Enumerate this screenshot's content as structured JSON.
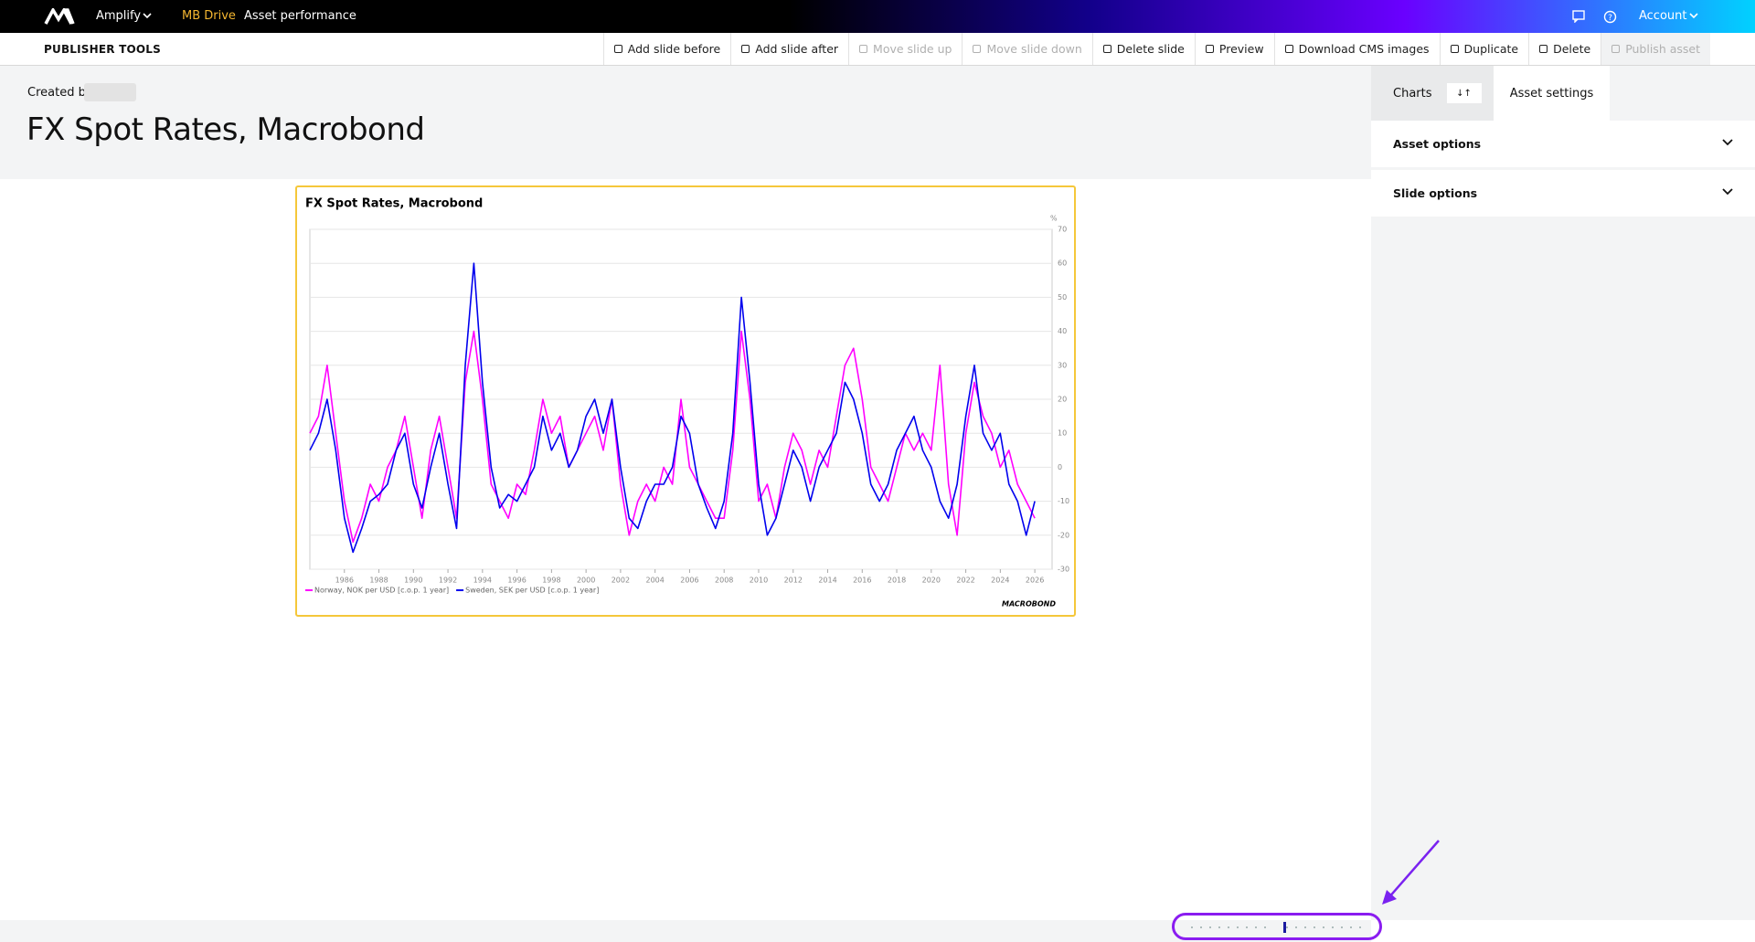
{
  "nav": {
    "brand": "Amplify",
    "links": [
      "MB Drive",
      "Asset performance"
    ],
    "account": "Account"
  },
  "toolbar": {
    "title": "PUBLISHER TOOLS",
    "buttons": [
      "Add slide before",
      "Add slide after",
      "Move slide up",
      "Move slide down",
      "Delete slide",
      "Preview",
      "Download CMS images",
      "Duplicate",
      "Delete",
      "Publish asset"
    ]
  },
  "header": {
    "created_by": "Created by",
    "title": "FX Spot Rates, Macrobond"
  },
  "sidebar": {
    "tabs": [
      "Charts",
      "Asset settings"
    ],
    "sections": [
      "Asset options",
      "Slide options"
    ]
  },
  "chart_data": {
    "type": "line",
    "title": "FX Spot Rates, Macrobond",
    "y_unit": "%",
    "source": "MACROBOND",
    "x": [
      1984,
      1984.5,
      1985,
      1985.5,
      1986,
      1986.5,
      1987,
      1987.5,
      1988,
      1988.5,
      1989,
      1989.5,
      1990,
      1990.5,
      1991,
      1991.5,
      1992,
      1992.5,
      1993,
      1993.5,
      1994,
      1994.5,
      1995,
      1995.5,
      1996,
      1996.5,
      1997,
      1997.5,
      1998,
      1998.5,
      1999,
      1999.5,
      2000,
      2000.5,
      2001,
      2001.5,
      2002,
      2002.5,
      2003,
      2003.5,
      2004,
      2004.5,
      2005,
      2005.5,
      2006,
      2006.5,
      2007,
      2007.5,
      2008,
      2008.5,
      2009,
      2009.5,
      2010,
      2010.5,
      2011,
      2011.5,
      2012,
      2012.5,
      2013,
      2013.5,
      2014,
      2014.5,
      2015,
      2015.5,
      2016,
      2016.5,
      2017,
      2017.5,
      2018,
      2018.5,
      2019,
      2019.5,
      2020,
      2020.5,
      2021,
      2021.5,
      2022,
      2022.5,
      2023,
      2023.5,
      2024,
      2024.5,
      2025,
      2025.5,
      2026
    ],
    "series": [
      {
        "name": "Norway, NOK per USD [c.o.p. 1 year]",
        "color": "#ff00ff",
        "values": [
          10,
          15,
          30,
          10,
          -10,
          -22,
          -15,
          -5,
          -10,
          0,
          5,
          15,
          0,
          -15,
          5,
          15,
          0,
          -15,
          25,
          40,
          20,
          -5,
          -10,
          -15,
          -5,
          -8,
          5,
          20,
          10,
          15,
          0,
          5,
          10,
          15,
          5,
          20,
          -5,
          -20,
          -10,
          -5,
          -10,
          0,
          -5,
          20,
          0,
          -5,
          -10,
          -15,
          -15,
          5,
          40,
          20,
          -10,
          -5,
          -15,
          0,
          10,
          5,
          -5,
          5,
          0,
          15,
          30,
          35,
          20,
          0,
          -5,
          -10,
          0,
          10,
          5,
          10,
          5,
          30,
          -5,
          -20,
          10,
          25,
          15,
          10,
          0,
          5,
          -5,
          -10,
          -15
        ]
      },
      {
        "name": "Sweden, SEK per USD [c.o.p. 1 year]",
        "color": "#0000ee",
        "values": [
          5,
          10,
          20,
          5,
          -15,
          -25,
          -18,
          -10,
          -8,
          -5,
          5,
          10,
          -5,
          -12,
          0,
          10,
          -5,
          -18,
          30,
          60,
          25,
          0,
          -12,
          -8,
          -10,
          -5,
          0,
          15,
          5,
          10,
          0,
          5,
          15,
          20,
          10,
          20,
          0,
          -15,
          -18,
          -10,
          -5,
          -5,
          0,
          15,
          10,
          -5,
          -12,
          -18,
          -10,
          10,
          50,
          25,
          -5,
          -20,
          -15,
          -5,
          5,
          0,
          -10,
          0,
          5,
          10,
          25,
          20,
          10,
          -5,
          -10,
          -5,
          5,
          10,
          15,
          5,
          0,
          -10,
          -15,
          -5,
          15,
          30,
          10,
          5,
          10,
          -5,
          -10,
          -20,
          -10
        ]
      }
    ],
    "xlim": [
      1984,
      2027
    ],
    "xticks": [
      1986,
      1988,
      1990,
      1992,
      1994,
      1996,
      1998,
      2000,
      2002,
      2004,
      2006,
      2008,
      2010,
      2012,
      2014,
      2016,
      2018,
      2020,
      2022,
      2024,
      2026
    ],
    "ylim": [
      -30,
      70
    ],
    "yticks": [
      -30,
      -20,
      -10,
      0,
      10,
      20,
      30,
      40,
      50,
      60,
      70
    ],
    "grid": true
  }
}
